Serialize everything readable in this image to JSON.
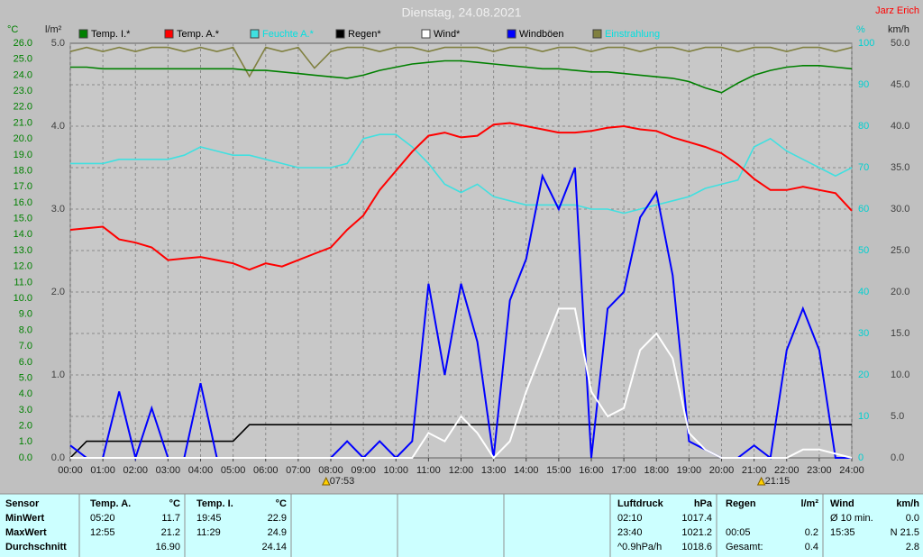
{
  "chart_data": {
    "type": "line",
    "title": "Dienstag, 24.08.2021",
    "author": "Jarz Erich",
    "x": [
      0,
      0.5,
      1,
      1.5,
      2,
      2.5,
      3,
      3.5,
      4,
      4.5,
      5,
      5.5,
      6,
      6.5,
      7,
      7.5,
      8,
      8.5,
      9,
      9.5,
      10,
      10.5,
      11,
      11.5,
      12,
      12.5,
      13,
      13.5,
      14,
      14.5,
      15,
      15.5,
      16,
      16.5,
      17,
      17.5,
      18,
      18.5,
      19,
      19.5,
      20,
      20.5,
      21,
      21.5,
      22,
      22.5,
      23,
      23.5,
      24
    ],
    "xlim": [
      0,
      24
    ],
    "xticks": [
      {
        "value": 0,
        "label": "00:00"
      },
      {
        "value": 1,
        "label": "01:00"
      },
      {
        "value": 2,
        "label": "02:00"
      },
      {
        "value": 3,
        "label": "03:00"
      },
      {
        "value": 4,
        "label": "04:00"
      },
      {
        "value": 5,
        "label": "05:00"
      },
      {
        "value": 6,
        "label": "06:00"
      },
      {
        "value": 7,
        "label": "07:00"
      },
      {
        "value": 8,
        "label": "08:00"
      },
      {
        "value": 9,
        "label": "09:00"
      },
      {
        "value": 10,
        "label": "10:00"
      },
      {
        "value": 11,
        "label": "11:00"
      },
      {
        "value": 12,
        "label": "12:00"
      },
      {
        "value": 13,
        "label": "13:00"
      },
      {
        "value": 14,
        "label": "14:00"
      },
      {
        "value": 15,
        "label": "15:00"
      },
      {
        "value": 16,
        "label": "16:00"
      },
      {
        "value": 17,
        "label": "17:00"
      },
      {
        "value": 18,
        "label": "18:00"
      },
      {
        "value": 19,
        "label": "19:00"
      },
      {
        "value": 20,
        "label": "20:00"
      },
      {
        "value": 21,
        "label": "21:00"
      },
      {
        "value": 22,
        "label": "22:00"
      },
      {
        "value": 23,
        "label": "23:00"
      },
      {
        "value": 24,
        "label": "24:00"
      }
    ],
    "sun_markers": [
      {
        "value": 7.883,
        "label": "07:53"
      },
      {
        "value": 21.25,
        "label": "21:15"
      }
    ],
    "grid": true,
    "axes": [
      {
        "label": "°C",
        "color": "#008000",
        "lim": [
          0,
          26
        ],
        "ticks": [
          {
            "value": 0,
            "label": "0.0"
          },
          {
            "value": 1,
            "label": "1.0"
          },
          {
            "value": 2,
            "label": "2.0"
          },
          {
            "value": 3,
            "label": "3.0"
          },
          {
            "value": 4,
            "label": "4.0"
          },
          {
            "value": 5,
            "label": "5.0"
          },
          {
            "value": 6,
            "label": "6.0"
          },
          {
            "value": 7,
            "label": "7.0"
          },
          {
            "value": 8,
            "label": "8.0"
          },
          {
            "value": 9,
            "label": "9.0"
          },
          {
            "value": 10,
            "label": "10.0"
          },
          {
            "value": 11,
            "label": "11.0"
          },
          {
            "value": 12,
            "label": "12.0"
          },
          {
            "value": 13,
            "label": "13.0"
          },
          {
            "value": 14,
            "label": "14.0"
          },
          {
            "value": 15,
            "label": "15.0"
          },
          {
            "value": 16,
            "label": "16.0"
          },
          {
            "value": 17,
            "label": "17.0"
          },
          {
            "value": 18,
            "label": "18.0"
          },
          {
            "value": 19,
            "label": "19.0"
          },
          {
            "value": 20,
            "label": "20.0"
          },
          {
            "value": 21,
            "label": "21.0"
          },
          {
            "value": 22,
            "label": "22.0"
          },
          {
            "value": 23,
            "label": "23.0"
          },
          {
            "value": 24,
            "label": "24.0"
          },
          {
            "value": 25,
            "label": "25.0"
          },
          {
            "value": 26,
            "label": "26.0"
          }
        ]
      },
      {
        "label": "l/m²",
        "color": "#404040",
        "lim": [
          0,
          5
        ],
        "ticks": [
          {
            "value": 0,
            "label": "0.0"
          },
          {
            "value": 1,
            "label": "1.0"
          },
          {
            "value": 2,
            "label": "2.0"
          },
          {
            "value": 3,
            "label": "3.0"
          },
          {
            "value": 4,
            "label": "4.0"
          },
          {
            "value": 5,
            "label": "5.0"
          }
        ]
      },
      {
        "label": "%",
        "color": "#00d0d0",
        "lim": [
          0,
          100
        ],
        "ticks": [
          0,
          10,
          20,
          30,
          40,
          50,
          60,
          70,
          80,
          90,
          100
        ]
      },
      {
        "label": "km/h",
        "color": "#404040",
        "lim": [
          0,
          50
        ],
        "ticks": [
          {
            "value": 0,
            "label": "0.0"
          },
          {
            "value": 5,
            "label": "5.0"
          },
          {
            "value": 10,
            "label": "10.0"
          },
          {
            "value": 15,
            "label": "15.0"
          },
          {
            "value": 20,
            "label": "20.0"
          },
          {
            "value": 25,
            "label": "25.0"
          },
          {
            "value": 30,
            "label": "30.0"
          },
          {
            "value": 35,
            "label": "35.0"
          },
          {
            "value": 40,
            "label": "40.0"
          },
          {
            "value": 45,
            "label": "45.0"
          },
          {
            "value": 50,
            "label": "50.0"
          }
        ]
      }
    ],
    "grid_axis": 2,
    "series": [
      {
        "name": "Temp. I.*",
        "color": "#008000",
        "axis": 0,
        "values": [
          24.5,
          24.5,
          24.4,
          24.4,
          24.4,
          24.4,
          24.4,
          24.4,
          24.4,
          24.4,
          24.4,
          24.3,
          24.3,
          24.2,
          24.1,
          24.0,
          23.9,
          23.8,
          24.0,
          24.3,
          24.5,
          24.7,
          24.8,
          24.9,
          24.9,
          24.8,
          24.7,
          24.6,
          24.5,
          24.4,
          24.4,
          24.3,
          24.2,
          24.2,
          24.1,
          24.0,
          23.9,
          23.8,
          23.6,
          23.2,
          22.9,
          23.5,
          24.0,
          24.3,
          24.5,
          24.6,
          24.6,
          24.5,
          24.4
        ]
      },
      {
        "name": "Temp. A.*",
        "color": "#ff0000",
        "axis": 0,
        "values": [
          14.3,
          14.4,
          14.5,
          13.7,
          13.5,
          13.2,
          12.4,
          12.5,
          12.6,
          12.4,
          12.2,
          11.8,
          12.2,
          12.0,
          12.4,
          12.8,
          13.2,
          14.3,
          15.2,
          16.8,
          18.0,
          19.2,
          20.2,
          20.4,
          20.1,
          20.2,
          20.9,
          21.0,
          20.8,
          20.6,
          20.4,
          20.4,
          20.5,
          20.7,
          20.8,
          20.6,
          20.5,
          20.1,
          19.8,
          19.5,
          19.1,
          18.4,
          17.5,
          16.8,
          16.8,
          17.0,
          16.8,
          16.6,
          15.5
        ]
      },
      {
        "name": "Feuchte A.*",
        "color": "#40e0e0",
        "axis": 2,
        "values": [
          71,
          71,
          71,
          72,
          72,
          72,
          72,
          73,
          75,
          74,
          73,
          73,
          72,
          71,
          70,
          70,
          70,
          71,
          77,
          78,
          78,
          75,
          71,
          66,
          64,
          66,
          63,
          62,
          61,
          61,
          61,
          61,
          60,
          60,
          59,
          60,
          61,
          62,
          63,
          65,
          66,
          67,
          75,
          77,
          74,
          72,
          70,
          68,
          70
        ]
      },
      {
        "name": "Regen*",
        "color": "#000000",
        "axis": 1,
        "values": [
          0.0,
          0.2,
          0.2,
          0.2,
          0.2,
          0.2,
          0.2,
          0.2,
          0.2,
          0.2,
          0.2,
          0.4,
          0.4,
          0.4,
          0.4,
          0.4,
          0.4,
          0.4,
          0.4,
          0.4,
          0.4,
          0.4,
          0.4,
          0.4,
          0.4,
          0.4,
          0.4,
          0.4,
          0.4,
          0.4,
          0.4,
          0.4,
          0.4,
          0.4,
          0.4,
          0.4,
          0.4,
          0.4,
          0.4,
          0.4,
          0.4,
          0.4,
          0.4,
          0.4,
          0.4,
          0.4,
          0.4,
          0.4,
          0.4
        ]
      },
      {
        "name": "Wind*",
        "color": "#ffffff",
        "axis": 3,
        "values": [
          0,
          0,
          0,
          0,
          0,
          0,
          0,
          0,
          0,
          0,
          0,
          0,
          0,
          0,
          0,
          0,
          0,
          0,
          0,
          0,
          0,
          0,
          3,
          2,
          5,
          3,
          0,
          2,
          8,
          13,
          18,
          18,
          8,
          5,
          6,
          13,
          15,
          12,
          3,
          1,
          0,
          0,
          0,
          0,
          0,
          1,
          1,
          0.5,
          0
        ]
      },
      {
        "name": "Windböen",
        "color": "#0000ff",
        "axis": 3,
        "values": [
          1.5,
          0,
          0,
          8,
          0,
          6,
          0,
          0,
          9,
          0,
          0,
          0,
          0,
          0,
          0,
          0,
          0,
          2,
          0,
          2,
          0,
          2,
          21,
          10,
          21,
          14,
          0,
          19,
          24,
          34,
          30,
          35,
          0,
          18,
          20,
          29,
          32,
          22,
          2,
          1,
          0,
          0,
          1.5,
          0,
          13,
          18,
          13,
          0,
          0
        ]
      },
      {
        "name": "Einstrahlung",
        "color": "#808040",
        "axis": 2,
        "values": [
          98,
          99,
          98,
          99,
          98,
          99,
          99,
          98,
          99,
          98,
          99,
          92,
          99,
          98,
          99,
          94,
          98,
          99,
          99,
          98,
          99,
          99,
          98,
          99,
          99,
          99,
          98,
          99,
          99,
          98,
          99,
          99,
          98,
          99,
          99,
          98,
          99,
          99,
          98,
          99,
          99,
          98,
          99,
          99,
          98,
          99,
          99,
          98,
          99
        ]
      }
    ]
  },
  "table": {
    "header": [
      "Sensor",
      "Temp. A.",
      "°C",
      "Temp. I.",
      "°C",
      "Luftdruck",
      "hPa",
      "Regen",
      "l/m²",
      "Wind",
      "km/h"
    ],
    "rows": [
      [
        "MinWert",
        "05:20",
        "11.7",
        "19:45",
        "22.9",
        "02:10",
        "1017.4",
        null,
        null,
        "Ø 10 min.",
        "0.0"
      ],
      [
        "MaxWert",
        "12:55",
        "21.2",
        "11:29",
        "24.9",
        "23:40",
        "1021.2",
        "00:05",
        "0.2",
        "15:35",
        "N 21.5"
      ],
      [
        "Durchschnitt",
        null,
        "16.90",
        null,
        "24.14",
        "^0.9hPa/h",
        "1018.6",
        "Gesamt:",
        "0.4",
        null,
        "2.8"
      ]
    ]
  }
}
